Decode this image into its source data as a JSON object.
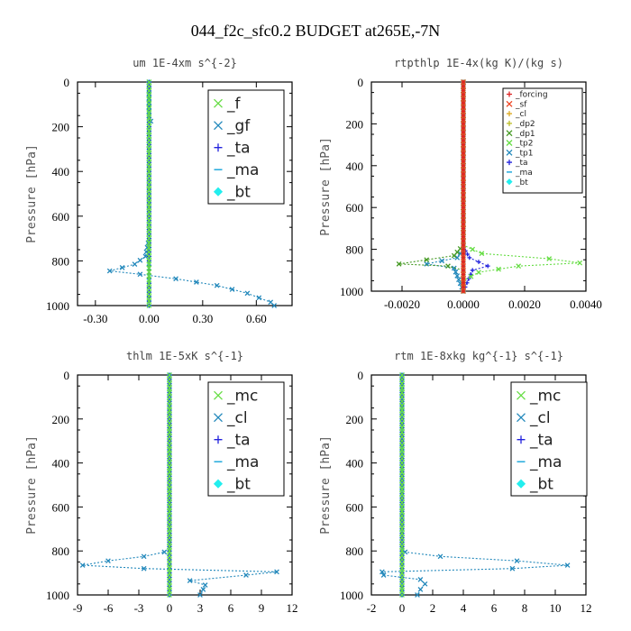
{
  "figure_title": "044_f2c_sfc0.2  BUDGET at265E,-7N",
  "chart_data": [
    {
      "type": "line",
      "title": "um  1E-4xm s^{-2}",
      "ylabel": "Pressure [hPa]",
      "xlim": [
        -0.4,
        0.8
      ],
      "ylim": [
        1000,
        0
      ],
      "xticks": [
        -0.3,
        0,
        0.3,
        0.6
      ],
      "xticklabels": [
        "-0.30",
        "0.00",
        "0.30",
        "0.60"
      ],
      "yticks": [
        0,
        200,
        400,
        600,
        800,
        1000
      ],
      "yticklabels": [
        "0",
        "200",
        "400",
        "600",
        "800",
        "1000"
      ],
      "legend_fontsize": "large",
      "series": [
        {
          "name": "_f",
          "color": "#66dd44",
          "marker": "x",
          "points": [
            [
              0,
              0
            ],
            [
              0,
              200
            ],
            [
              0,
              400
            ],
            [
              0,
              600
            ],
            [
              0,
              800
            ],
            [
              0,
              850
            ],
            [
              0,
              900
            ],
            [
              0,
              1000
            ]
          ]
        },
        {
          "name": "_gf",
          "color": "#2288bb",
          "marker": "x",
          "points": [
            [
              0,
              0
            ],
            [
              0,
              150
            ],
            [
              0.01,
              175
            ],
            [
              0,
              200
            ],
            [
              0,
              400
            ],
            [
              0,
              700
            ],
            [
              -0.02,
              780
            ],
            [
              -0.08,
              815
            ],
            [
              -0.22,
              845
            ],
            [
              -0.05,
              860
            ],
            [
              0.15,
              880
            ],
            [
              0.38,
              910
            ],
            [
              0.55,
              945
            ],
            [
              0.68,
              985
            ],
            [
              0.7,
              1000
            ]
          ]
        },
        {
          "name": "_ta",
          "color": "#2222dd",
          "marker": "+",
          "points": [
            [
              0,
              0
            ],
            [
              0,
              400
            ],
            [
              0,
              800
            ],
            [
              0,
              1000
            ]
          ]
        },
        {
          "name": "_ma",
          "color": "#22aadd",
          "marker": "-",
          "points": [
            [
              0,
              0
            ],
            [
              0,
              500
            ],
            [
              0,
              1000
            ]
          ]
        },
        {
          "name": "_bt",
          "color": "#22eeee",
          "marker": "diamond",
          "points": [
            [
              0,
              0
            ],
            [
              0,
              500
            ],
            [
              0,
              1000
            ]
          ]
        }
      ]
    },
    {
      "type": "line",
      "title": "rtpthlp  1E-4x(kg K)/(kg s)",
      "ylabel": "Pressure [hPa]",
      "xlim": [
        -0.003,
        0.004
      ],
      "ylim": [
        1000,
        0
      ],
      "xticks": [
        -0.002,
        0,
        0.002,
        0.004
      ],
      "xticklabels": [
        "-0.0020",
        "0.0000",
        "0.0020",
        "0.0040"
      ],
      "yticks": [
        0,
        200,
        400,
        600,
        800,
        1000
      ],
      "yticklabels": [
        "0",
        "200",
        "400",
        "600",
        "800",
        "1000"
      ],
      "legend_fontsize": "small",
      "series": [
        {
          "name": "_forcing",
          "color": "#dd2222",
          "marker": "+",
          "points": [
            [
              0,
              0
            ],
            [
              0,
              500
            ],
            [
              0,
              1000
            ]
          ]
        },
        {
          "name": "_sf",
          "color": "#ee4422",
          "marker": "x",
          "points": [
            [
              0,
              0
            ],
            [
              0,
              500
            ],
            [
              0,
              1000
            ]
          ]
        },
        {
          "name": "_cl",
          "color": "#ddaa22",
          "marker": "+",
          "points": [
            [
              0,
              0
            ],
            [
              0,
              500
            ],
            [
              0,
              1000
            ]
          ]
        },
        {
          "name": "_dp2",
          "color": "#bbbb22",
          "marker": "+",
          "points": [
            [
              0,
              0
            ],
            [
              0,
              500
            ],
            [
              0,
              1000
            ]
          ]
        },
        {
          "name": "_dp1",
          "color": "#449922",
          "marker": "x",
          "points": [
            [
              0,
              0
            ],
            [
              0,
              780
            ],
            [
              -0.0003,
              830
            ],
            [
              -0.0021,
              870
            ],
            [
              -0.0005,
              880
            ],
            [
              0,
              900
            ],
            [
              0,
              1000
            ]
          ]
        },
        {
          "name": "_tp2",
          "color": "#66dd44",
          "marker": "x",
          "points": [
            [
              0,
              0
            ],
            [
              0,
              780
            ],
            [
              0.0006,
              820
            ],
            [
              0.0028,
              845
            ],
            [
              0.0038,
              865
            ],
            [
              0.0018,
              880
            ],
            [
              0.0005,
              910
            ],
            [
              0,
              950
            ],
            [
              0,
              1000
            ]
          ]
        },
        {
          "name": "_tp1",
          "color": "#2288bb",
          "marker": "x",
          "points": [
            [
              0,
              0
            ],
            [
              0,
              800
            ],
            [
              -0.0002,
              840
            ],
            [
              -0.0012,
              870
            ],
            [
              -0.0003,
              890
            ],
            [
              0,
              1000
            ]
          ]
        },
        {
          "name": "_ta",
          "color": "#2222dd",
          "marker": "+",
          "points": [
            [
              0,
              0
            ],
            [
              0,
              790
            ],
            [
              0.0002,
              840
            ],
            [
              0.0008,
              880
            ],
            [
              0.0003,
              900
            ],
            [
              0,
              1000
            ]
          ]
        },
        {
          "name": "_ma",
          "color": "#22aadd",
          "marker": "-",
          "points": [
            [
              0,
              0
            ],
            [
              0,
              500
            ],
            [
              0,
              1000
            ]
          ]
        },
        {
          "name": "_bt",
          "color": "#22eeee",
          "marker": "diamond",
          "points": [
            [
              0,
              0
            ],
            [
              0,
              500
            ],
            [
              0,
              1000
            ]
          ]
        }
      ]
    },
    {
      "type": "line",
      "title": "thlm  1E-5xK s^{-1}",
      "ylabel": "Pressure [hPa]",
      "xlim": [
        -9,
        12
      ],
      "ylim": [
        1000,
        0
      ],
      "xticks": [
        -9,
        -6,
        -3,
        0,
        3,
        6,
        9,
        12
      ],
      "xticklabels": [
        "-9",
        "-6",
        "-3",
        "0",
        "3",
        "6",
        "9",
        "12"
      ],
      "yticks": [
        0,
        200,
        400,
        600,
        800,
        1000
      ],
      "yticklabels": [
        "0",
        "200",
        "400",
        "600",
        "800",
        "1000"
      ],
      "legend_fontsize": "large",
      "series": [
        {
          "name": "_mc",
          "color": "#66dd44",
          "marker": "x",
          "points": [
            [
              0,
              0
            ],
            [
              0,
              200
            ],
            [
              0,
              400
            ],
            [
              0,
              600
            ],
            [
              0,
              800
            ],
            [
              0,
              1000
            ]
          ]
        },
        {
          "name": "_cl",
          "color": "#2288bb",
          "marker": "x",
          "points": [
            [
              0,
              0
            ],
            [
              0,
              780
            ],
            [
              -0.5,
              805
            ],
            [
              -2.5,
              825
            ],
            [
              -6,
              845
            ],
            [
              -8.5,
              865
            ],
            [
              -2.5,
              880
            ],
            [
              10.5,
              895
            ],
            [
              7.5,
              910
            ],
            [
              2,
              935
            ],
            [
              3.5,
              955
            ],
            [
              3.3,
              975
            ],
            [
              3,
              1000
            ]
          ]
        },
        {
          "name": "_ta",
          "color": "#2222dd",
          "marker": "+",
          "points": [
            [
              0,
              0
            ],
            [
              0,
              500
            ],
            [
              0,
              1000
            ]
          ]
        },
        {
          "name": "_ma",
          "color": "#22aadd",
          "marker": "-",
          "points": [
            [
              0,
              0
            ],
            [
              0,
              500
            ],
            [
              0,
              1000
            ]
          ]
        },
        {
          "name": "_bt",
          "color": "#22eeee",
          "marker": "diamond",
          "points": [
            [
              0,
              0
            ],
            [
              0,
              500
            ],
            [
              0,
              1000
            ]
          ]
        }
      ]
    },
    {
      "type": "line",
      "title": "rtm  1E-8xkg kg^{-1} s^{-1}",
      "ylabel": "Pressure [hPa]",
      "xlim": [
        -2,
        12
      ],
      "ylim": [
        1000,
        0
      ],
      "xticks": [
        -2,
        0,
        2,
        4,
        6,
        8,
        10,
        12
      ],
      "xticklabels": [
        "-2",
        "0",
        "2",
        "4",
        "6",
        "8",
        "10",
        "12"
      ],
      "yticks": [
        0,
        200,
        400,
        600,
        800,
        1000
      ],
      "yticklabels": [
        "0",
        "200",
        "400",
        "600",
        "800",
        "1000"
      ],
      "legend_fontsize": "large",
      "series": [
        {
          "name": "_mc",
          "color": "#66dd44",
          "marker": "x",
          "points": [
            [
              0,
              0
            ],
            [
              0,
              200
            ],
            [
              0,
              400
            ],
            [
              0,
              600
            ],
            [
              0,
              800
            ],
            [
              0,
              1000
            ]
          ]
        },
        {
          "name": "_cl",
          "color": "#2288bb",
          "marker": "x",
          "points": [
            [
              0,
              0
            ],
            [
              0,
              780
            ],
            [
              0.2,
              805
            ],
            [
              2.5,
              825
            ],
            [
              7.5,
              845
            ],
            [
              10.8,
              865
            ],
            [
              7.2,
              880
            ],
            [
              -1.3,
              895
            ],
            [
              -1.2,
              910
            ],
            [
              1.2,
              930
            ],
            [
              1.5,
              950
            ],
            [
              1.2,
              975
            ],
            [
              1,
              1000
            ]
          ]
        },
        {
          "name": "_ta",
          "color": "#2222dd",
          "marker": "+",
          "points": [
            [
              0,
              0
            ],
            [
              0,
              500
            ],
            [
              0,
              1000
            ]
          ]
        },
        {
          "name": "_ma",
          "color": "#22aadd",
          "marker": "-",
          "points": [
            [
              0,
              0
            ],
            [
              0,
              500
            ],
            [
              0,
              1000
            ]
          ]
        },
        {
          "name": "_bt",
          "color": "#22eeee",
          "marker": "diamond",
          "points": [
            [
              0,
              0
            ],
            [
              0,
              500
            ],
            [
              0,
              1000
            ]
          ]
        }
      ]
    }
  ]
}
